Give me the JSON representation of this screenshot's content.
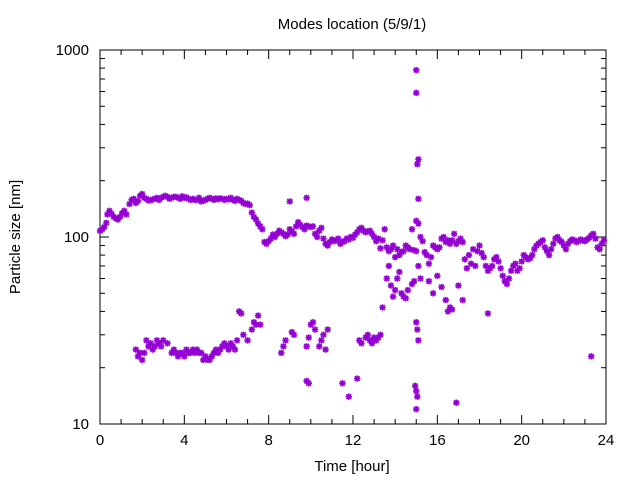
{
  "chart_data": {
    "type": "scatter",
    "title": "Modes location (5/9/1)",
    "xlabel": "Time [hour]",
    "ylabel": "Particle size [nm]",
    "xlim": [
      0,
      24
    ],
    "ylim": [
      10,
      1000
    ],
    "yscale": "log",
    "xticks": [
      0,
      4,
      8,
      12,
      16,
      20,
      24
    ],
    "yticks": [
      10,
      100,
      1000
    ],
    "grid": false,
    "legend": "none",
    "marker_color": "#9400d3",
    "points": [
      [
        0.0,
        108
      ],
      [
        0.1,
        110
      ],
      [
        0.2,
        113
      ],
      [
        0.3,
        119
      ],
      [
        0.35,
        132
      ],
      [
        0.45,
        138
      ],
      [
        0.55,
        133
      ],
      [
        0.65,
        128
      ],
      [
        0.75,
        126
      ],
      [
        0.85,
        124
      ],
      [
        0.95,
        128
      ],
      [
        1.05,
        134
      ],
      [
        1.15,
        138
      ],
      [
        1.25,
        132
      ],
      [
        1.4,
        150
      ],
      [
        1.5,
        158
      ],
      [
        1.6,
        160
      ],
      [
        1.7,
        152
      ],
      [
        1.8,
        156
      ],
      [
        1.9,
        166
      ],
      [
        2.0,
        170
      ],
      [
        2.1,
        162
      ],
      [
        2.2,
        160
      ],
      [
        2.3,
        157
      ],
      [
        2.4,
        157
      ],
      [
        2.5,
        159
      ],
      [
        2.6,
        160
      ],
      [
        2.7,
        162
      ],
      [
        2.8,
        158
      ],
      [
        2.9,
        162
      ],
      [
        3.0,
        164
      ],
      [
        3.1,
        166
      ],
      [
        3.2,
        164
      ],
      [
        3.3,
        160
      ],
      [
        3.4,
        162
      ],
      [
        3.5,
        164
      ],
      [
        3.6,
        164
      ],
      [
        3.7,
        162
      ],
      [
        3.8,
        160
      ],
      [
        3.9,
        165
      ],
      [
        4.0,
        162
      ],
      [
        4.1,
        163
      ],
      [
        4.2,
        160
      ],
      [
        4.3,
        158
      ],
      [
        4.4,
        160
      ],
      [
        4.5,
        158
      ],
      [
        4.6,
        158
      ],
      [
        4.7,
        162
      ],
      [
        4.8,
        155
      ],
      [
        4.9,
        156
      ],
      [
        5.0,
        158
      ],
      [
        5.1,
        160
      ],
      [
        5.2,
        162
      ],
      [
        5.3,
        160
      ],
      [
        5.4,
        158
      ],
      [
        5.5,
        161
      ],
      [
        5.6,
        159
      ],
      [
        5.7,
        161
      ],
      [
        5.8,
        160
      ],
      [
        5.9,
        158
      ],
      [
        6.0,
        160
      ],
      [
        6.1,
        159
      ],
      [
        6.2,
        162
      ],
      [
        6.3,
        158
      ],
      [
        6.4,
        156
      ],
      [
        6.5,
        160
      ],
      [
        6.6,
        158
      ],
      [
        6.7,
        156
      ],
      [
        6.8,
        152
      ],
      [
        6.9,
        150
      ],
      [
        7.0,
        151
      ],
      [
        7.1,
        148
      ],
      [
        7.2,
        135
      ],
      [
        7.3,
        128
      ],
      [
        7.4,
        124
      ],
      [
        7.5,
        118
      ],
      [
        7.6,
        114
      ],
      [
        7.7,
        110
      ],
      [
        7.8,
        94
      ],
      [
        7.9,
        92
      ],
      [
        8.0,
        95
      ],
      [
        8.1,
        98
      ],
      [
        8.2,
        103
      ],
      [
        8.3,
        100
      ],
      [
        8.4,
        104
      ],
      [
        8.5,
        108
      ],
      [
        8.6,
        106
      ],
      [
        8.7,
        104
      ],
      [
        8.8,
        101
      ],
      [
        8.9,
        103
      ],
      [
        9.0,
        110
      ],
      [
        9.1,
        107
      ],
      [
        9.2,
        104
      ],
      [
        9.3,
        114
      ],
      [
        9.4,
        120
      ],
      [
        9.5,
        116
      ],
      [
        9.6,
        113
      ],
      [
        9.7,
        110
      ],
      [
        9.8,
        115
      ],
      [
        9.9,
        114
      ],
      [
        10.0,
        113
      ],
      [
        10.1,
        114
      ],
      [
        10.2,
        104
      ],
      [
        10.3,
        100
      ],
      [
        10.4,
        108
      ],
      [
        10.5,
        112
      ],
      [
        10.6,
        98
      ],
      [
        10.7,
        92
      ],
      [
        10.8,
        90
      ],
      [
        10.9,
        94
      ],
      [
        11.0,
        97
      ],
      [
        11.1,
        95
      ],
      [
        11.2,
        96
      ],
      [
        11.3,
        98
      ],
      [
        11.4,
        92
      ],
      [
        11.5,
        94
      ],
      [
        11.6,
        95
      ],
      [
        11.7,
        98
      ],
      [
        11.8,
        97
      ],
      [
        11.9,
        100
      ],
      [
        12.0,
        99
      ],
      [
        12.1,
        103
      ],
      [
        12.2,
        106
      ],
      [
        12.3,
        110
      ],
      [
        12.4,
        112
      ],
      [
        12.5,
        108
      ],
      [
        12.6,
        106
      ],
      [
        12.7,
        107
      ],
      [
        12.8,
        108
      ],
      [
        12.9,
        104
      ],
      [
        13.0,
        100
      ],
      [
        13.1,
        95
      ],
      [
        13.2,
        98
      ],
      [
        13.3,
        87
      ],
      [
        13.4,
        96
      ],
      [
        13.5,
        110
      ],
      [
        13.6,
        88
      ],
      [
        13.7,
        84
      ],
      [
        13.8,
        86
      ],
      [
        13.9,
        90
      ],
      [
        14.0,
        78
      ],
      [
        14.1,
        86
      ],
      [
        14.2,
        80
      ],
      [
        14.3,
        83
      ],
      [
        14.4,
        84
      ],
      [
        14.5,
        90
      ],
      [
        14.6,
        88
      ],
      [
        14.7,
        86
      ],
      [
        14.8,
        110
      ],
      [
        14.9,
        85
      ],
      [
        15.0,
        84
      ],
      [
        15.1,
        70
      ],
      [
        15.2,
        100
      ],
      [
        15.3,
        95
      ],
      [
        15.4,
        83
      ],
      [
        15.5,
        80
      ],
      [
        15.6,
        72
      ],
      [
        15.7,
        78
      ],
      [
        15.8,
        90
      ],
      [
        15.9,
        88
      ],
      [
        16.0,
        86
      ],
      [
        16.1,
        88
      ],
      [
        16.2,
        98
      ],
      [
        16.3,
        100
      ],
      [
        16.4,
        94
      ],
      [
        16.5,
        96
      ],
      [
        16.6,
        92
      ],
      [
        16.7,
        96
      ],
      [
        16.8,
        104
      ],
      [
        16.9,
        92
      ],
      [
        17.0,
        95
      ],
      [
        17.1,
        98
      ],
      [
        17.2,
        94
      ],
      [
        17.3,
        76
      ],
      [
        17.4,
        68
      ],
      [
        17.5,
        80
      ],
      [
        17.6,
        72
      ],
      [
        17.7,
        86
      ],
      [
        17.8,
        70
      ],
      [
        17.9,
        84
      ],
      [
        18.0,
        90
      ],
      [
        18.1,
        82
      ],
      [
        18.2,
        78
      ],
      [
        18.3,
        70
      ],
      [
        18.4,
        66
      ],
      [
        18.5,
        68
      ],
      [
        18.6,
        70
      ],
      [
        18.7,
        76
      ],
      [
        18.8,
        78
      ],
      [
        18.9,
        74
      ],
      [
        19.0,
        68
      ],
      [
        19.1,
        62
      ],
      [
        19.2,
        58
      ],
      [
        19.3,
        56
      ],
      [
        19.4,
        60
      ],
      [
        19.5,
        66
      ],
      [
        19.6,
        70
      ],
      [
        19.7,
        72
      ],
      [
        19.8,
        66
      ],
      [
        19.9,
        68
      ],
      [
        20.0,
        74
      ],
      [
        20.1,
        80
      ],
      [
        20.2,
        78
      ],
      [
        20.3,
        76
      ],
      [
        20.4,
        77
      ],
      [
        20.5,
        80
      ],
      [
        20.6,
        86
      ],
      [
        20.7,
        90
      ],
      [
        20.8,
        92
      ],
      [
        20.9,
        94
      ],
      [
        21.0,
        96
      ],
      [
        21.1,
        88
      ],
      [
        21.2,
        84
      ],
      [
        21.3,
        80
      ],
      [
        21.4,
        86
      ],
      [
        21.5,
        92
      ],
      [
        21.6,
        98
      ],
      [
        21.7,
        100
      ],
      [
        21.8,
        96
      ],
      [
        21.9,
        94
      ],
      [
        22.0,
        90
      ],
      [
        22.1,
        86
      ],
      [
        22.2,
        92
      ],
      [
        22.3,
        95
      ],
      [
        22.4,
        97
      ],
      [
        22.5,
        96
      ],
      [
        22.6,
        94
      ],
      [
        22.7,
        95
      ],
      [
        22.8,
        97
      ],
      [
        22.9,
        96
      ],
      [
        23.0,
        95
      ],
      [
        23.1,
        97
      ],
      [
        23.2,
        99
      ],
      [
        23.3,
        102
      ],
      [
        23.4,
        104
      ],
      [
        23.5,
        98
      ],
      [
        23.6,
        88
      ],
      [
        23.7,
        86
      ],
      [
        23.8,
        92
      ],
      [
        23.9,
        96
      ],
      [
        1.7,
        25
      ],
      [
        1.8,
        23
      ],
      [
        1.9,
        24
      ],
      [
        2.0,
        22
      ],
      [
        2.1,
        24
      ],
      [
        2.2,
        28
      ],
      [
        2.3,
        26
      ],
      [
        2.4,
        27
      ],
      [
        2.5,
        25
      ],
      [
        2.6,
        26
      ],
      [
        2.7,
        28
      ],
      [
        2.8,
        27
      ],
      [
        2.9,
        26
      ],
      [
        3.0,
        28
      ],
      [
        3.2,
        27
      ],
      [
        3.4,
        24
      ],
      [
        3.5,
        25
      ],
      [
        3.6,
        24
      ],
      [
        3.7,
        23
      ],
      [
        3.8,
        24
      ],
      [
        3.9,
        24
      ],
      [
        4.0,
        23
      ],
      [
        4.1,
        25
      ],
      [
        4.2,
        24
      ],
      [
        4.3,
        24
      ],
      [
        4.4,
        25
      ],
      [
        4.5,
        24
      ],
      [
        4.6,
        25
      ],
      [
        4.7,
        24
      ],
      [
        4.8,
        24
      ],
      [
        4.9,
        22
      ],
      [
        5.0,
        23
      ],
      [
        5.1,
        22
      ],
      [
        5.2,
        22
      ],
      [
        5.3,
        23
      ],
      [
        5.4,
        24
      ],
      [
        5.5,
        25
      ],
      [
        5.6,
        24
      ],
      [
        5.7,
        25
      ],
      [
        5.8,
        26
      ],
      [
        5.9,
        27
      ],
      [
        6.0,
        26
      ],
      [
        6.1,
        25
      ],
      [
        6.2,
        27
      ],
      [
        6.3,
        26
      ],
      [
        6.4,
        25
      ],
      [
        6.5,
        28
      ],
      [
        6.6,
        40
      ],
      [
        6.7,
        39
      ],
      [
        6.8,
        30
      ],
      [
        7.0,
        28
      ],
      [
        7.2,
        32
      ],
      [
        7.3,
        35
      ],
      [
        7.4,
        34
      ],
      [
        7.5,
        38
      ],
      [
        7.6,
        34
      ],
      [
        8.6,
        24
      ],
      [
        8.7,
        26
      ],
      [
        8.8,
        28
      ],
      [
        9.1,
        31
      ],
      [
        9.2,
        30
      ],
      [
        9.8,
        26
      ],
      [
        9.9,
        29
      ],
      [
        10.0,
        34
      ],
      [
        10.1,
        35
      ],
      [
        10.2,
        32
      ],
      [
        10.4,
        26
      ],
      [
        10.5,
        28
      ],
      [
        10.6,
        30
      ],
      [
        10.7,
        25
      ],
      [
        10.8,
        32
      ],
      [
        9.8,
        17
      ],
      [
        9.9,
        16.5
      ],
      [
        11.5,
        16.5
      ],
      [
        11.8,
        14
      ],
      [
        12.2,
        17.5
      ],
      [
        12.3,
        28
      ],
      [
        12.4,
        27
      ],
      [
        12.6,
        29
      ],
      [
        12.7,
        30
      ],
      [
        12.8,
        28
      ],
      [
        12.9,
        27
      ],
      [
        13.0,
        29
      ],
      [
        13.1,
        28
      ],
      [
        13.2,
        29
      ],
      [
        13.3,
        30
      ],
      [
        13.4,
        42
      ],
      [
        13.6,
        60
      ],
      [
        13.7,
        70
      ],
      [
        13.8,
        55
      ],
      [
        13.9,
        48
      ],
      [
        14.0,
        52
      ],
      [
        14.1,
        60
      ],
      [
        14.2,
        65
      ],
      [
        14.3,
        50
      ],
      [
        14.4,
        48
      ],
      [
        14.5,
        47
      ],
      [
        14.6,
        52
      ],
      [
        14.8,
        56
      ],
      [
        14.9,
        58
      ],
      [
        15.0,
        35
      ],
      [
        15.05,
        32
      ],
      [
        15.1,
        28
      ],
      [
        15.2,
        60
      ],
      [
        14.95,
        16
      ],
      [
        15.0,
        15
      ],
      [
        15.05,
        14
      ],
      [
        15.0,
        12
      ],
      [
        15.0,
        780
      ],
      [
        15.0,
        590
      ],
      [
        15.1,
        260
      ],
      [
        15.05,
        245
      ],
      [
        15.1,
        160
      ],
      [
        15.0,
        122
      ],
      [
        15.1,
        118
      ],
      [
        15.6,
        58
      ],
      [
        15.8,
        50
      ],
      [
        16.0,
        62
      ],
      [
        16.2,
        54
      ],
      [
        16.4,
        46
      ],
      [
        16.5,
        40
      ],
      [
        16.6,
        42
      ],
      [
        16.7,
        41
      ],
      [
        17.0,
        55
      ],
      [
        17.2,
        46
      ],
      [
        18.4,
        39
      ],
      [
        16.9,
        13
      ],
      [
        23.3,
        23
      ],
      [
        9.0,
        155
      ],
      [
        9.8,
        162
      ]
    ]
  }
}
